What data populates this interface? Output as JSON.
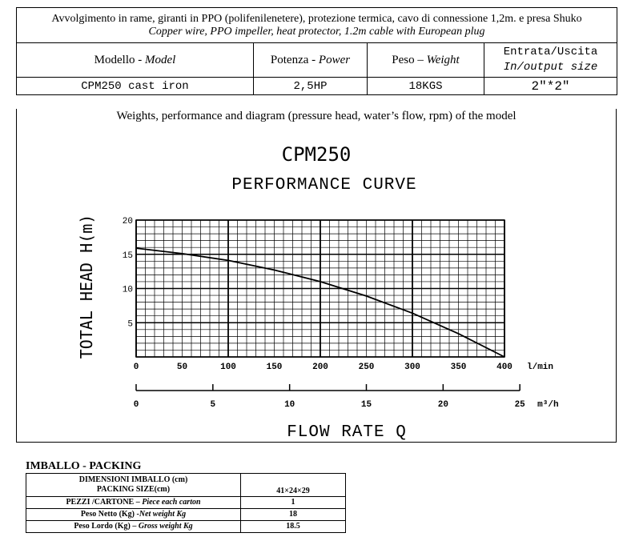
{
  "header": {
    "italian": "Avvolgimento in rame, giranti in PPO  (polifenilenetere), protezione termica, cavo di connessione 1,2m. e presa Shuko",
    "english": "Copper wire, PPO impeller, heat protector, 1.2m cable with European plug"
  },
  "spec_columns": [
    {
      "it": "Modello - ",
      "en": "Model"
    },
    {
      "it": "Potenza - ",
      "en": "Power"
    },
    {
      "it": "Peso – ",
      "en": "Weight"
    },
    {
      "it": "Entrata/Uscita",
      "en": "In/output size"
    }
  ],
  "spec_values": [
    "CPM250 cast iron",
    "2,5HP",
    "18KGS",
    "2″*2″"
  ],
  "chart_caption": "Weights, performance and diagram (pressure head, water’s flow, rpm) of the model",
  "chart_data": {
    "type": "line",
    "title": "CPM250",
    "subtitle": "PERFORMANCE CURVE",
    "ylabel": "TOTAL HEAD  H(m)",
    "xlabel": "FLOW RATE Q",
    "x_unit": "l/min",
    "x2_unit": "m³/h",
    "xlim": [
      0,
      400
    ],
    "ylim": [
      0,
      20
    ],
    "x_ticks": [
      0,
      50,
      100,
      150,
      200,
      250,
      300,
      350,
      400
    ],
    "y_ticks": [
      5,
      10,
      15,
      20
    ],
    "x2_ticks": [
      0,
      5,
      10,
      15,
      20,
      25
    ],
    "x2_lim": [
      0,
      24
    ],
    "grid": true,
    "series": [
      {
        "x": [
          0,
          50,
          100,
          150,
          200,
          250,
          300,
          350,
          400
        ],
        "y": [
          15.9,
          15.1,
          14.1,
          12.7,
          11.0,
          8.9,
          6.4,
          3.4,
          0
        ]
      }
    ]
  },
  "packing": {
    "title": "IMBALLO - PACKING",
    "rows": [
      {
        "it": "DIMENSIONI IMBALLO (cm)",
        "it2": "PACKING SIZE(cm)",
        "en": "",
        "value": "41×24×29"
      },
      {
        "it": "PEZZI /CARTONE – ",
        "en": "Piece each carton",
        "value": "1"
      },
      {
        "it": "Peso Netto (Kg) -",
        "en": "Net  weight Kg",
        "value": "18"
      },
      {
        "it": "Peso Lordo (Kg) – ",
        "en": "Gross weight Kg",
        "value": "18.5"
      }
    ]
  }
}
